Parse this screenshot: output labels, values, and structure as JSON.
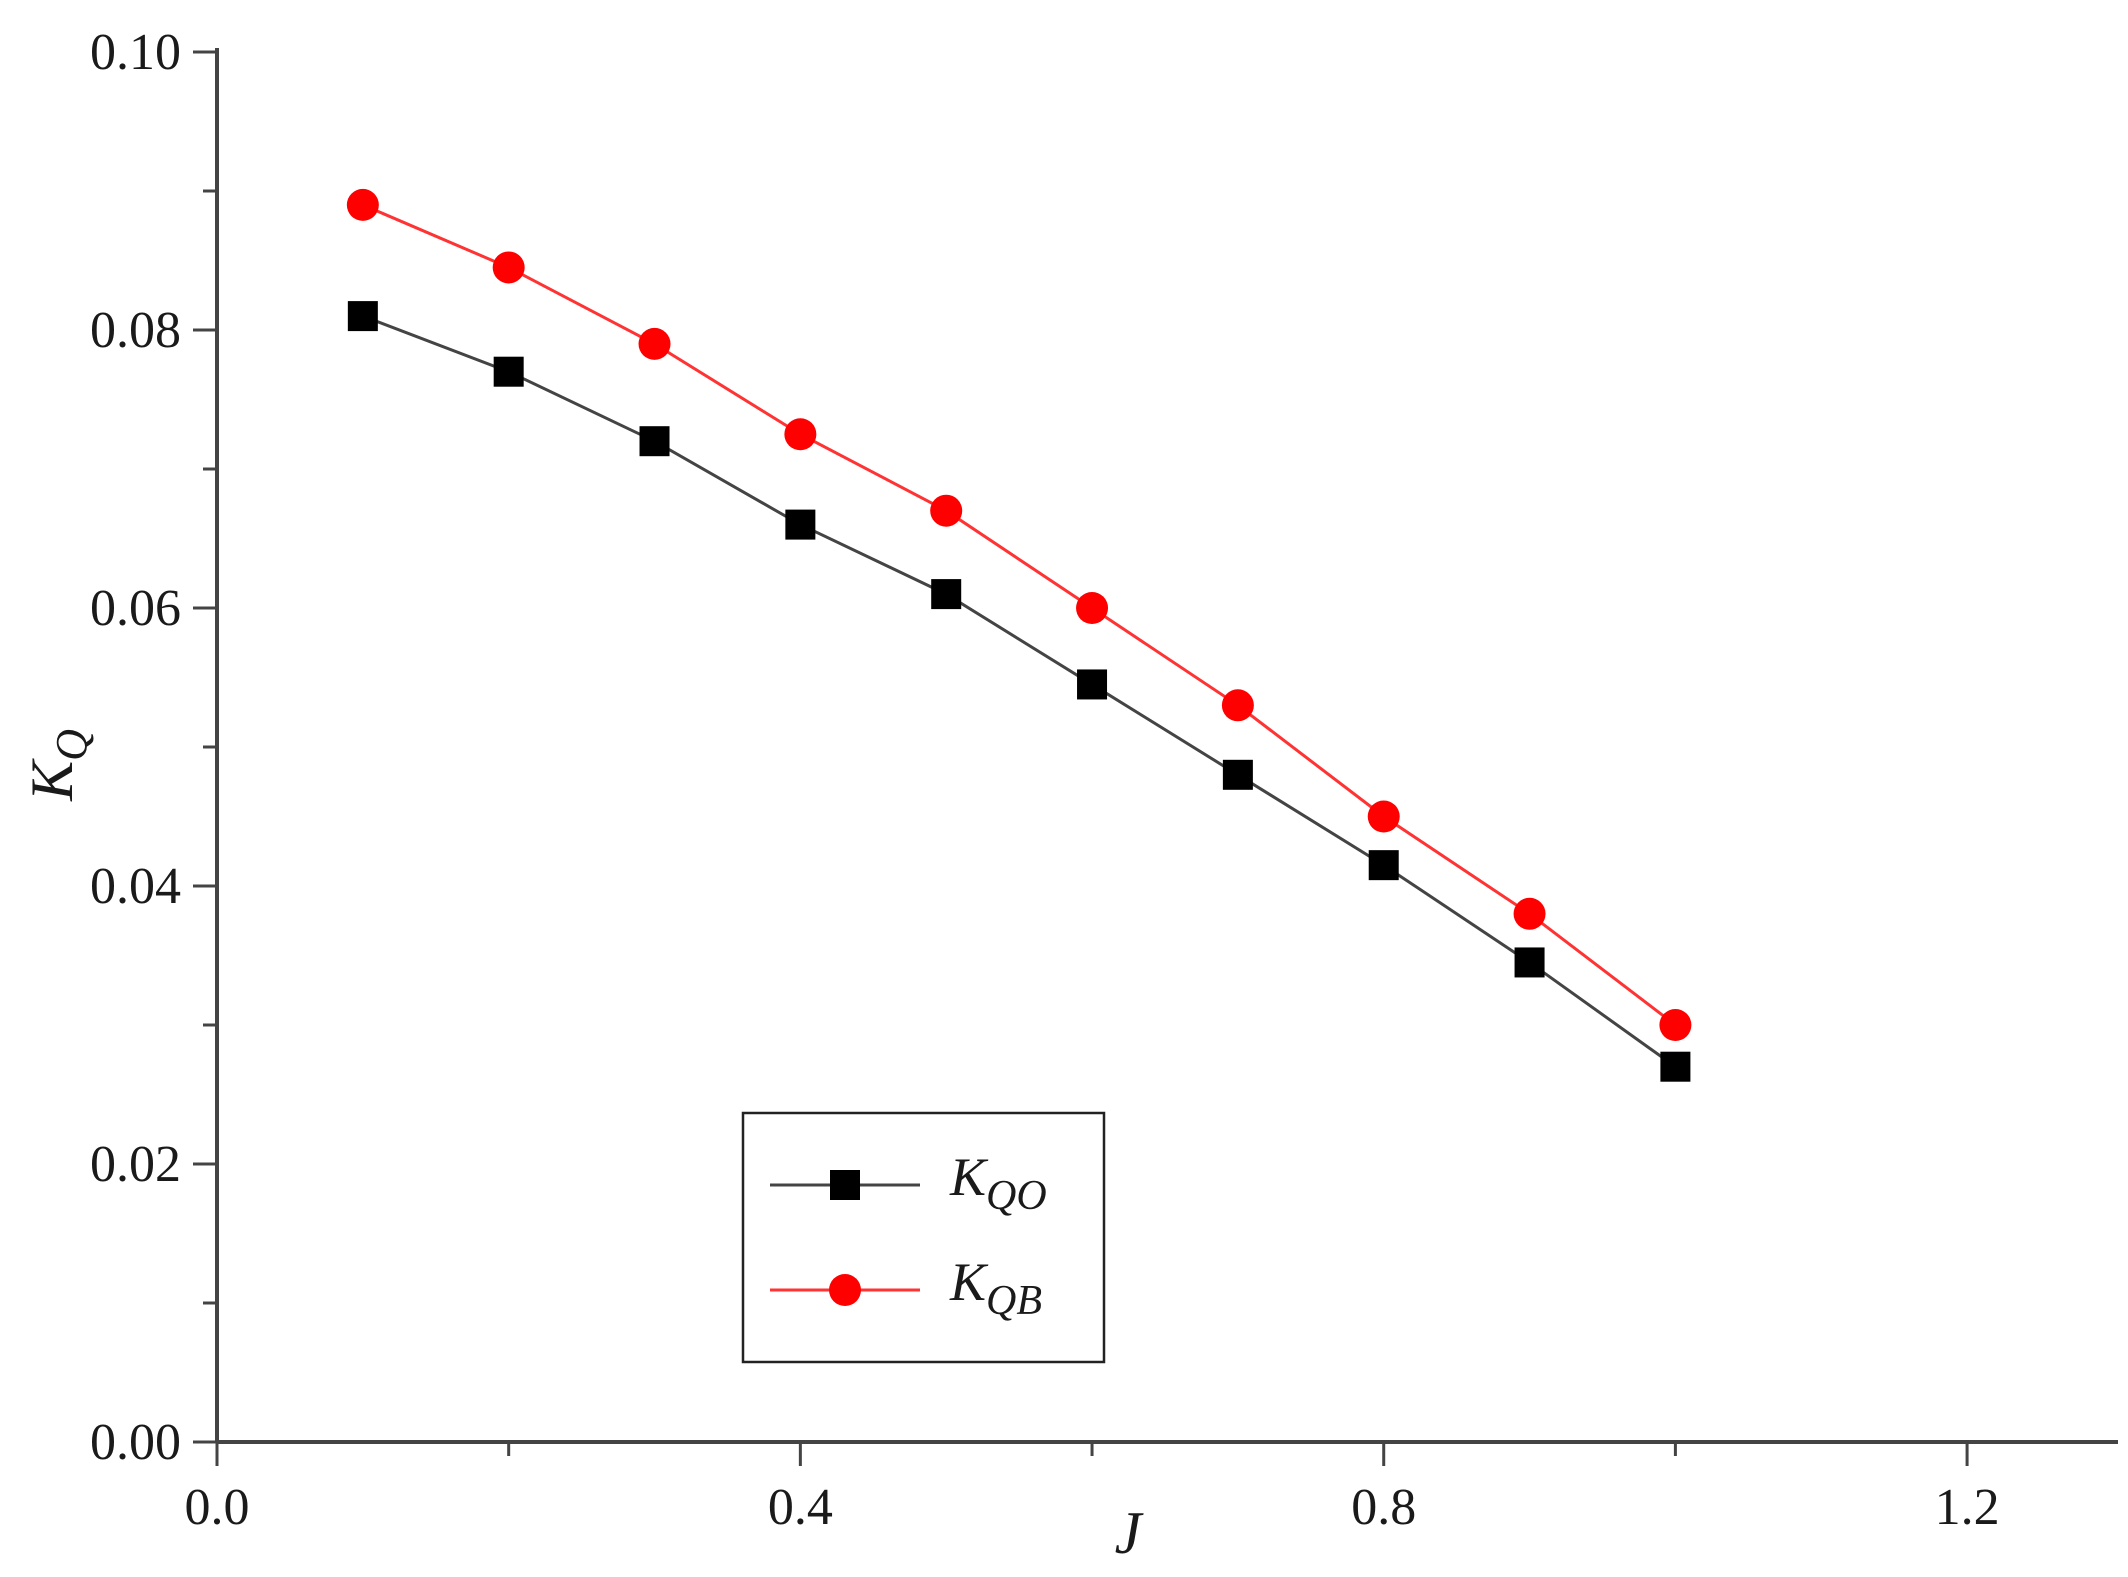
{
  "chart_data": {
    "type": "line",
    "xlabel": {
      "main": "J",
      "sub": ""
    },
    "ylabel": {
      "main": "K",
      "sub": "Q"
    },
    "xlim": [
      0.0,
      1.25
    ],
    "ylim": [
      0.0,
      0.1
    ],
    "x_ticks": [
      0.0,
      0.2,
      0.4,
      0.6,
      0.8,
      1.0,
      1.2
    ],
    "x_tick_labels": [
      "0.0",
      "",
      "0.4",
      "",
      "0.8",
      "",
      "1.2"
    ],
    "y_ticks": [
      0.0,
      0.01,
      0.02,
      0.03,
      0.04,
      0.05,
      0.06,
      0.07,
      0.08,
      0.09,
      0.1
    ],
    "y_tick_labels": [
      "0.00",
      "",
      "0.02",
      "",
      "0.04",
      "",
      "0.06",
      "",
      "0.08",
      "",
      "0.10"
    ],
    "grid": false,
    "legend_position": "bottom-center",
    "x": [
      0.1,
      0.2,
      0.3,
      0.4,
      0.5,
      0.6,
      0.7,
      0.8,
      0.9,
      1.0
    ],
    "series": [
      {
        "name": "K_QO",
        "label_main": "K",
        "label_sub": "QO",
        "marker": "square",
        "color": "#000000",
        "line_color": "#444444",
        "values": [
          0.081,
          0.077,
          0.072,
          0.066,
          0.061,
          0.0545,
          0.048,
          0.0415,
          0.0345,
          0.027
        ]
      },
      {
        "name": "K_QB",
        "label_main": "K",
        "label_sub": "QB",
        "marker": "circle",
        "color": "#ff0000",
        "line_color": "#ff3333",
        "values": [
          0.089,
          0.0845,
          0.079,
          0.0725,
          0.067,
          0.06,
          0.053,
          0.045,
          0.038,
          0.03
        ]
      }
    ]
  }
}
